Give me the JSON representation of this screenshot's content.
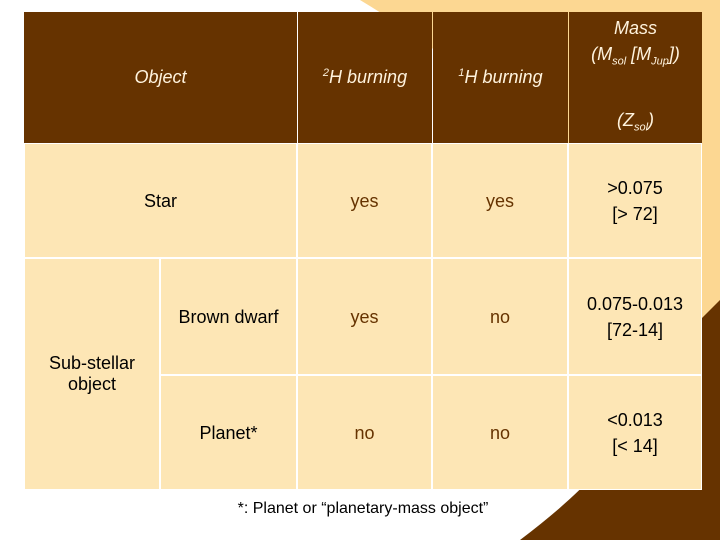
{
  "header": {
    "object": "Object",
    "columns": [
      [
        {
          "text": "2",
          "style": "sup"
        },
        {
          "text": "H burning"
        }
      ],
      [
        {
          "text": "1",
          "style": "sup"
        },
        {
          "text": "H burning"
        }
      ]
    ],
    "mass": [
      [
        {
          "text": "Mass"
        }
      ],
      [
        {
          "text": "(M"
        },
        {
          "text": "sol",
          "style": "sub"
        },
        {
          "text": " [M"
        },
        {
          "text": "Jup",
          "style": "sub"
        },
        {
          "text": "])"
        }
      ],
      [
        {
          "text": "(Z"
        },
        {
          "text": "sol",
          "style": "sub"
        },
        {
          "text": ")"
        }
      ]
    ]
  },
  "group": "Sub-stellar object",
  "rows": [
    [
      "Star",
      "yes",
      "yes",
      ">0.075",
      "[> 72]"
    ],
    [
      "Brown dwarf",
      "yes",
      "no",
      "0.075-0.013",
      "[72-14]"
    ],
    [
      "Planet*",
      "no",
      "no",
      "<0.013",
      "[< 14]"
    ]
  ],
  "footnote": "*: Planet or “planetary-mass object”"
}
